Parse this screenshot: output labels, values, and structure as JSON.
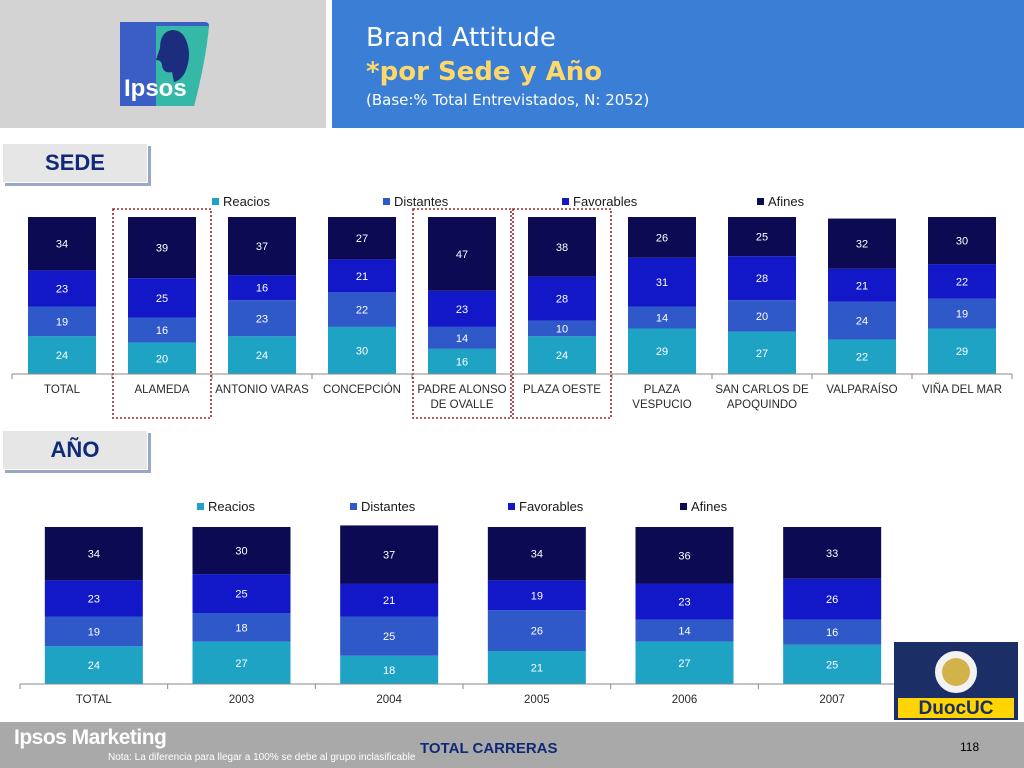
{
  "header": {
    "title": "Brand Attitude",
    "subtitle": "*por Sede y Año",
    "base": "(Base:% Total Entrevistados, N: 2052)",
    "logo_text": "Ipsos"
  },
  "sections": {
    "sede": "SEDE",
    "ano": "AÑO"
  },
  "colors": {
    "Reacios": "#1fa3c5",
    "Distantes": "#2f59c8",
    "Favorables": "#1218c8",
    "Afines": "#0b0a52",
    "highlight": "#9b2a25"
  },
  "chart_data": [
    {
      "type": "bar",
      "stacked": true,
      "categories": [
        "TOTAL",
        "ALAMEDA",
        "ANTONIO VARAS",
        "CONCEPCIÓN",
        "PADRE ALONSO DE OVALLE",
        "PLAZA OESTE",
        "PLAZA VESPUCIO",
        "SAN CARLOS DE APOQUINDO",
        "VALPARAÍSO",
        "VIÑA DEL MAR"
      ],
      "category_lines": [
        [
          "TOTAL"
        ],
        [
          "ALAMEDA"
        ],
        [
          "ANTONIO VARAS"
        ],
        [
          "CONCEPCIÓN"
        ],
        [
          "PADRE ALONSO",
          "DE OVALLE"
        ],
        [
          "PLAZA OESTE"
        ],
        [
          "PLAZA",
          "VESPUCIO"
        ],
        [
          "SAN CARLOS DE",
          "APOQUINDO"
        ],
        [
          "VALPARAÍSO"
        ],
        [
          "VIÑA DEL MAR"
        ]
      ],
      "series": [
        {
          "name": "Reacios",
          "values": [
            24,
            20,
            24,
            30,
            16,
            24,
            29,
            27,
            22,
            29
          ]
        },
        {
          "name": "Distantes",
          "values": [
            19,
            16,
            23,
            22,
            14,
            10,
            14,
            20,
            24,
            19
          ]
        },
        {
          "name": "Favorables",
          "values": [
            23,
            25,
            16,
            21,
            23,
            28,
            31,
            28,
            21,
            22
          ]
        },
        {
          "name": "Afines",
          "values": [
            34,
            39,
            37,
            27,
            47,
            38,
            26,
            25,
            32,
            30
          ]
        }
      ],
      "highlighted": [
        "ALAMEDA",
        "PADRE ALONSO DE OVALLE",
        "PLAZA OESTE"
      ],
      "legend_position": "top",
      "ylim": [
        0,
        100
      ]
    },
    {
      "type": "bar",
      "stacked": true,
      "categories": [
        "TOTAL",
        "2003",
        "2004",
        "2005",
        "2006",
        "2007"
      ],
      "category_lines": [
        [
          "TOTAL"
        ],
        [
          "2003"
        ],
        [
          "2004"
        ],
        [
          "2005"
        ],
        [
          "2006"
        ],
        [
          "2007"
        ]
      ],
      "series": [
        {
          "name": "Reacios",
          "values": [
            24,
            27,
            18,
            21,
            27,
            25
          ]
        },
        {
          "name": "Distantes",
          "values": [
            19,
            18,
            25,
            26,
            14,
            16
          ]
        },
        {
          "name": "Favorables",
          "values": [
            23,
            25,
            21,
            19,
            23,
            26
          ]
        },
        {
          "name": "Afines",
          "values": [
            34,
            30,
            37,
            34,
            36,
            33
          ]
        }
      ],
      "legend_position": "top",
      "ylim": [
        0,
        100
      ]
    }
  ],
  "footer": {
    "brand": "Ipsos Marketing",
    "note": "Nota:  La diferencia para llegar a  100% se debe al grupo inclasificable",
    "total": "TOTAL CARRERAS",
    "page": "118",
    "duoc_logo": "DuocUC"
  }
}
